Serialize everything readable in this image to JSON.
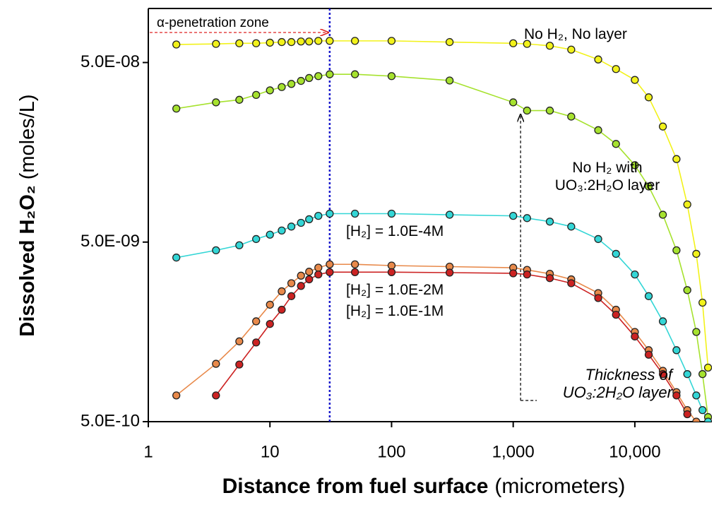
{
  "chart_data": {
    "type": "scatter-line",
    "xlabel": {
      "text": "Distance from fuel surface",
      "unit": "(micrometers)"
    },
    "ylabel": {
      "text": "Dissolved H₂O₂",
      "unit": "(moles/L)"
    },
    "xscale": "log",
    "yscale": "log",
    "xlim": [
      1,
      43000
    ],
    "ylim": [
      5e-10,
      1e-07
    ],
    "xticks": [
      1,
      10,
      100,
      {
        "value": 1000,
        "label": "1,000"
      },
      {
        "value": 10000,
        "label": "10,000"
      }
    ],
    "yticks": [
      {
        "value": 5e-10,
        "label": "5.0E-10"
      },
      {
        "value": 5e-09,
        "label": "5.0E-09"
      },
      {
        "value": 5e-08,
        "label": "5.0E-08"
      }
    ],
    "x": [
      1.7,
      3.6,
      5.6,
      7.7,
      10,
      12.5,
      15,
      18,
      21,
      25,
      31,
      50,
      100,
      300,
      1000,
      1300,
      2000,
      3000,
      5000,
      7000,
      10000,
      13000,
      17000,
      22000,
      27000,
      32000,
      36000,
      40000
    ],
    "series": [
      {
        "name": "No H₂, No layer",
        "color": "#f2f21a",
        "values": [
          6.3e-08,
          6.35e-08,
          6.4e-08,
          6.4e-08,
          6.45e-08,
          6.5e-08,
          6.5e-08,
          6.55e-08,
          6.55e-08,
          6.6e-08,
          6.6e-08,
          6.6e-08,
          6.6e-08,
          6.5e-08,
          6.4e-08,
          6.35e-08,
          6.2e-08,
          5.9e-08,
          5.2e-08,
          4.6e-08,
          4e-08,
          3.2e-08,
          2.2e-08,
          1.45e-08,
          8.1e-09,
          4.3e-09,
          2.3e-09,
          1e-09
        ]
      },
      {
        "name": "No H₂ with UO₃:2H₂O layer",
        "color": "#a6e22e",
        "values": [
          2.77e-08,
          3e-08,
          3.1e-08,
          3.3e-08,
          3.5e-08,
          3.65e-08,
          3.8e-08,
          3.95e-08,
          4.1e-08,
          4.2e-08,
          4.3e-08,
          4.3e-08,
          4.2e-08,
          3.97e-08,
          3e-08,
          2.7e-08,
          2.7e-08,
          2.5e-08,
          2.1e-08,
          1.76e-08,
          1.34e-08,
          1.02e-08,
          7.1e-09,
          4.5e-09,
          2.7e-09,
          1.58e-09,
          9.2e-10,
          5.3e-10
        ]
      },
      {
        "name": "[H₂] = 1.0E-4M",
        "color": "#33d6d6",
        "values": [
          4.1e-09,
          4.5e-09,
          4.8e-09,
          5.2e-09,
          5.5e-09,
          5.8e-09,
          6.1e-09,
          6.4e-09,
          6.7e-09,
          7e-09,
          7.2e-09,
          7.2e-09,
          7.2e-09,
          7.1e-09,
          7e-09,
          6.8e-09,
          6.5e-09,
          6.1e-09,
          5.2e-09,
          4.3e-09,
          3.3e-09,
          2.5e-09,
          1.81e-09,
          1.25e-09,
          9.2e-10,
          7e-10,
          5.8e-10,
          5e-10
        ]
      },
      {
        "name": "[H₂] = 1.0E-2M",
        "color": "#e8894a",
        "values": [
          7e-10,
          1.05e-09,
          1.4e-09,
          1.81e-09,
          2.24e-09,
          2.66e-09,
          2.95e-09,
          3.25e-09,
          3.42e-09,
          3.6e-09,
          3.76e-09,
          3.76e-09,
          3.7e-09,
          3.65e-09,
          3.6e-09,
          3.5e-09,
          3.33e-09,
          3.1e-09,
          2.6e-09,
          2.1e-09,
          1.58e-09,
          1.25e-09,
          9.6e-10,
          7.3e-10,
          5.8e-10,
          5e-10,
          null,
          null
        ]
      },
      {
        "name": "[H₂] = 1.0E-1M",
        "color": "#cc2222",
        "values": [
          null,
          7e-10,
          1.04e-09,
          1.38e-09,
          1.75e-09,
          2.1e-09,
          2.5e-09,
          2.85e-09,
          3.1e-09,
          3.3e-09,
          3.4e-09,
          3.4e-09,
          3.4e-09,
          3.38e-09,
          3.35e-09,
          3.3e-09,
          3.15e-09,
          2.95e-09,
          2.44e-09,
          1.97e-09,
          1.49e-09,
          1.18e-09,
          9.2e-10,
          7e-10,
          5.5e-10,
          null,
          null,
          null
        ]
      }
    ],
    "annotations": [
      {
        "text": "α-penetration zone",
        "x": 31
      },
      {
        "text": "Thickness of UO₃:2H₂O layer",
        "x": 1150
      }
    ]
  }
}
